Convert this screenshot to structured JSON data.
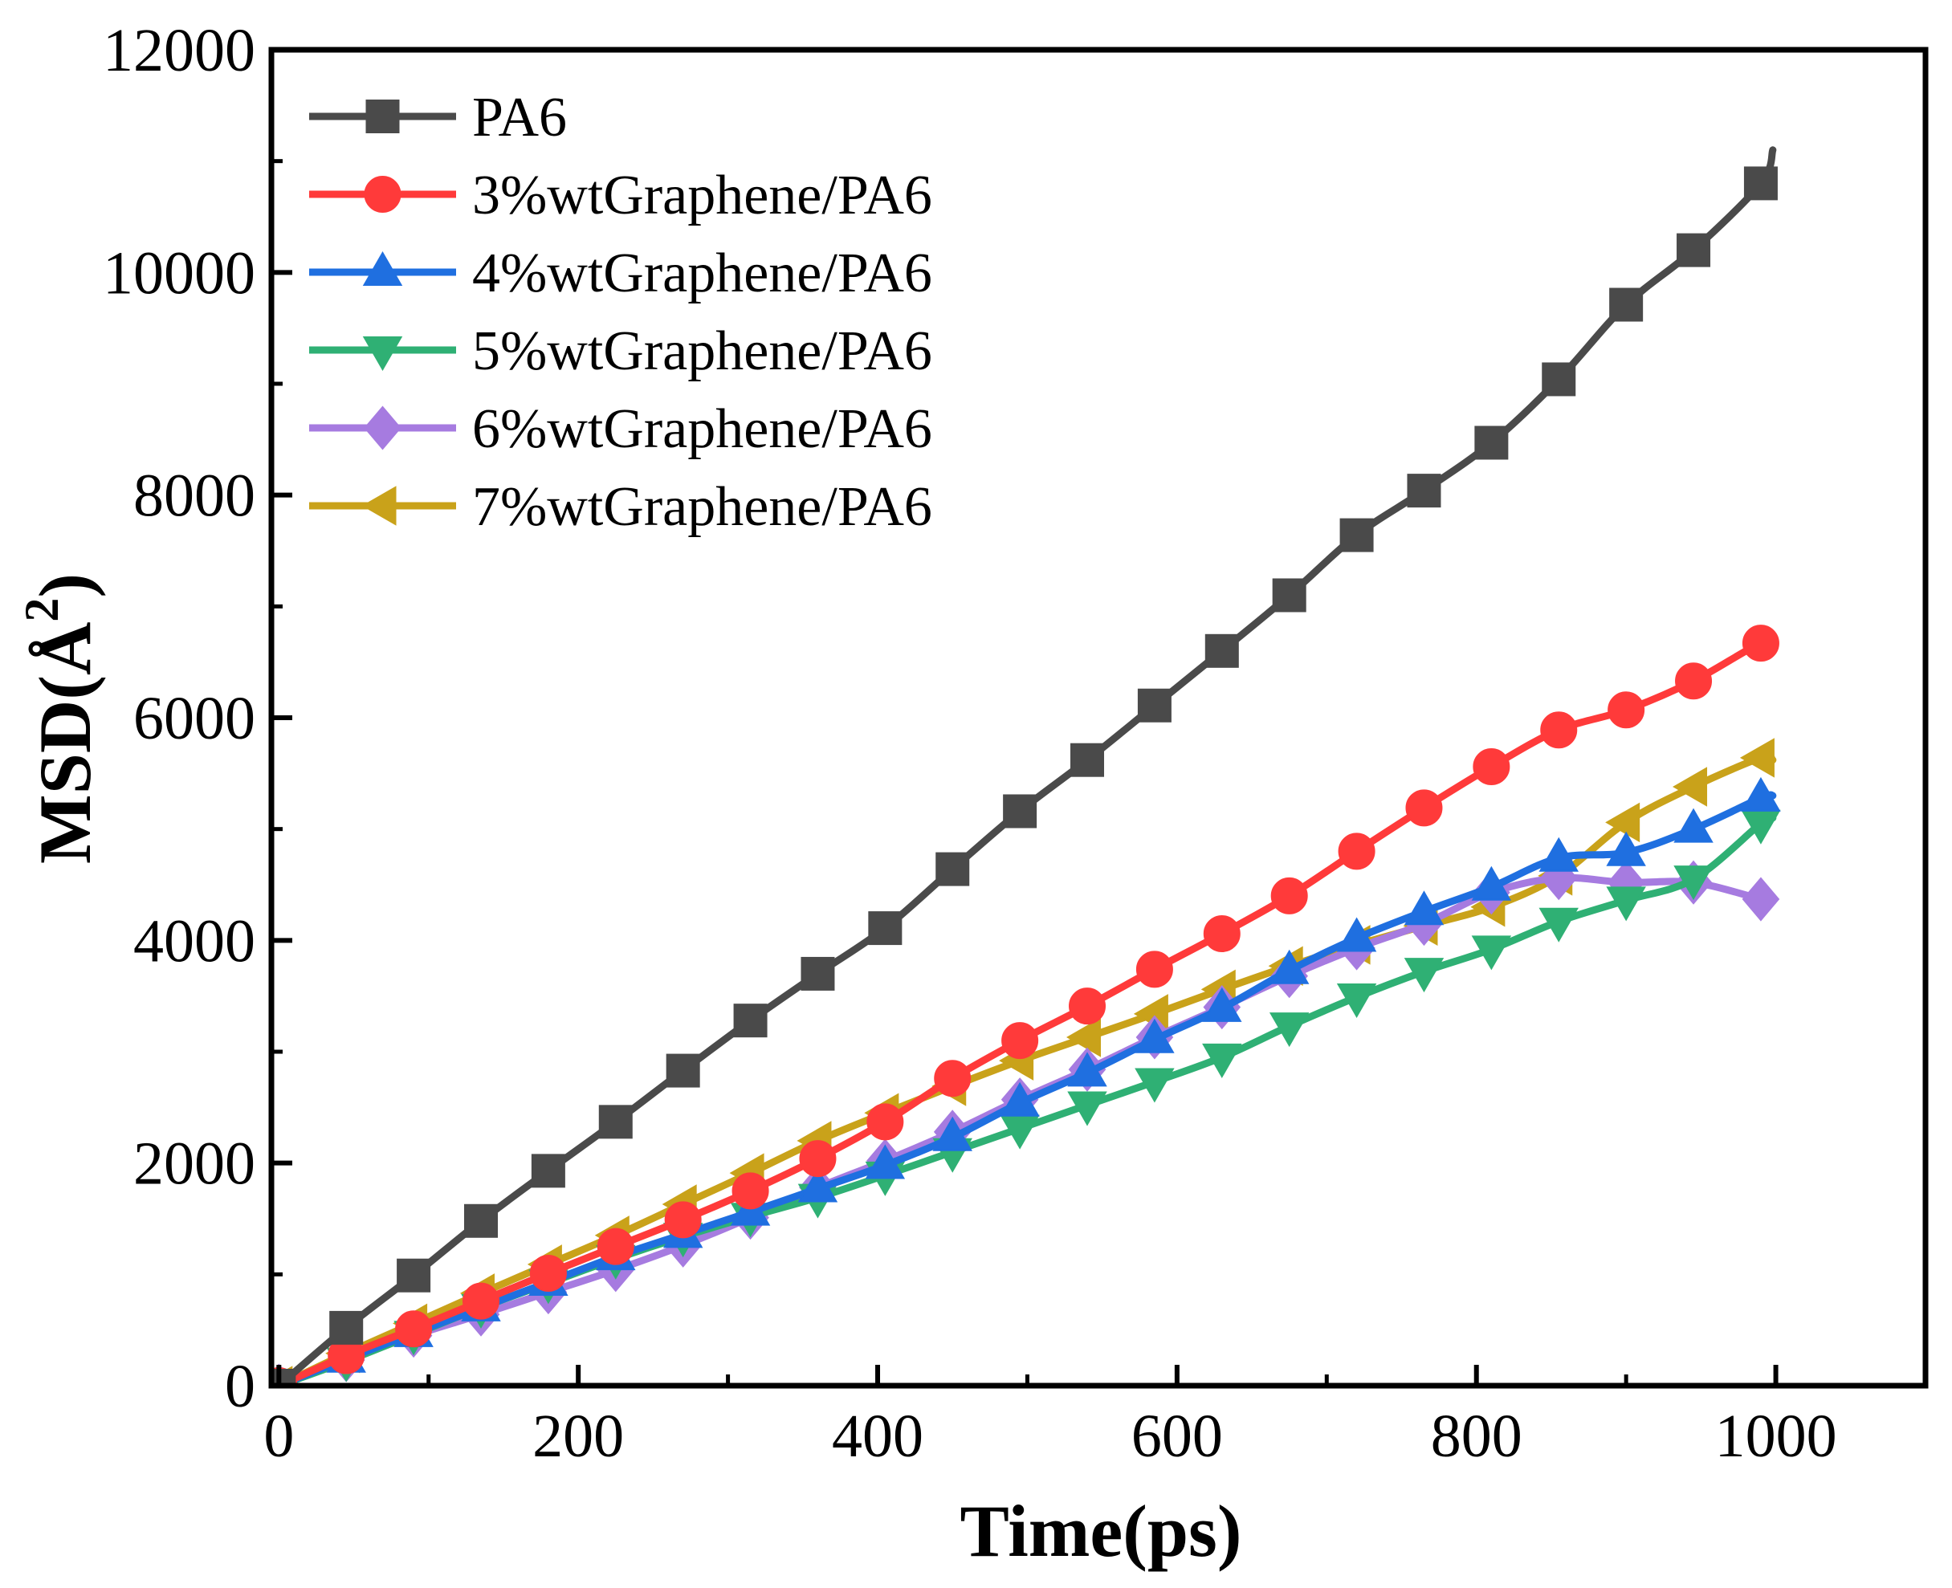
{
  "chart_data": {
    "type": "line",
    "title": "",
    "xlabel": "Time(ps)",
    "ylabel": "MSD(Å",
    "ylabel_sup": "2",
    "ylabel_close": ")",
    "xlim": [
      -5,
      1100
    ],
    "ylim": [
      0,
      12000
    ],
    "xticks": [
      0,
      200,
      400,
      600,
      800,
      1000
    ],
    "yticks": [
      0,
      2000,
      4000,
      6000,
      8000,
      10000,
      12000
    ],
    "grid": false,
    "legend_position": "top-left",
    "x": [
      0,
      45,
      90,
      135,
      180,
      225,
      270,
      315,
      360,
      405,
      450,
      495,
      540,
      585,
      630,
      675,
      720,
      765,
      810,
      855,
      900,
      945,
      990
    ],
    "series": [
      {
        "name": "PA6",
        "color": "#4a4a4a",
        "marker": "square",
        "values": [
          0,
          520,
          990,
          1480,
          1930,
          2370,
          2830,
          3280,
          3700,
          4110,
          4640,
          5160,
          5620,
          6110,
          6600,
          7100,
          7640,
          8040,
          8470,
          9040,
          9710,
          10200,
          10800
        ],
        "end": [
          998,
          11100
        ]
      },
      {
        "name": "3%wtGraphene/PA6",
        "color": "#ff3a3a",
        "marker": "circle",
        "values": [
          0,
          270,
          510,
          760,
          1010,
          1250,
          1490,
          1750,
          2040,
          2370,
          2760,
          3100,
          3410,
          3740,
          4060,
          4400,
          4800,
          5190,
          5560,
          5890,
          6070,
          6330,
          6670
        ],
        "end": [
          998,
          6620
        ]
      },
      {
        "name": "4%wtGraphene/PA6",
        "color": "#1f6fe0",
        "marker": "triangle-up",
        "values": [
          0,
          240,
          470,
          700,
          930,
          1160,
          1360,
          1560,
          1770,
          1980,
          2230,
          2540,
          2810,
          3110,
          3390,
          3730,
          4020,
          4260,
          4480,
          4740,
          4790,
          5000,
          5280
        ],
        "end": [
          998,
          5300
        ]
      },
      {
        "name": "5%wtGraphene/PA6",
        "color": "#2fb074",
        "marker": "triangle-down",
        "values": [
          0,
          220,
          460,
          700,
          920,
          1140,
          1340,
          1520,
          1690,
          1890,
          2100,
          2310,
          2520,
          2730,
          2950,
          3230,
          3490,
          3720,
          3920,
          4170,
          4360,
          4550,
          5050
        ],
        "end": [
          998,
          5100
        ]
      },
      {
        "name": "6%wtGraphene/PA6",
        "color": "#a67be0",
        "marker": "diamond",
        "values": [
          0,
          230,
          450,
          640,
          840,
          1040,
          1260,
          1510,
          1780,
          2020,
          2280,
          2570,
          2840,
          3130,
          3400,
          3680,
          3930,
          4150,
          4430,
          4560,
          4520,
          4520,
          4370
        ],
        "end": [
          998,
          4350
        ]
      },
      {
        "name": "7%wtGraphene/PA6",
        "color": "#c9a21a",
        "marker": "triangle-left",
        "values": [
          0,
          290,
          560,
          830,
          1090,
          1350,
          1630,
          1910,
          2200,
          2450,
          2690,
          2920,
          3130,
          3340,
          3560,
          3770,
          3960,
          4130,
          4300,
          4580,
          5060,
          5380,
          5640
        ],
        "end": [
          998,
          5620
        ]
      }
    ]
  }
}
